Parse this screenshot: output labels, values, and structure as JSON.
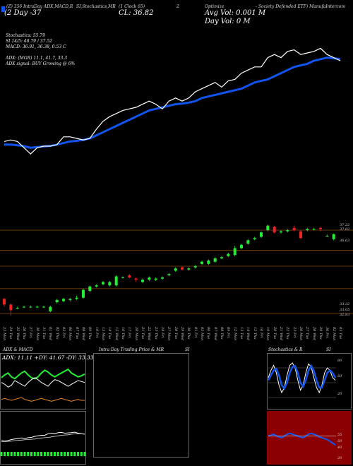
{
  "header": {
    "ticker_line": "(Z) 356 IntraDay ADX,MACD,R",
    "chart_type_line": "SI,Stochastics,MR",
    "clock_line": "(1 Clock 65)",
    "ceiling": "2",
    "title_right": "Optimize",
    "company": "- Society Defended ETF) ManufaIntercom",
    "o_value": "(2 Day -37",
    "cl_value": "CL: 36.82",
    "avg_vol": "Avg Vol: 0.001 M",
    "day_vol": "Day Vol: 0   M"
  },
  "info": {
    "stochastics": "Stochastics: 55.79",
    "si": "SI 14/5: 48.79 / 37.52",
    "macd": "MACD: 36.91, 36.38, 0.53 C",
    "adx": "ADX:                    (MGR) 11.1, 41.7, 33.3",
    "adx_signal": "ADX  signal:                           BUY Growing @ 6%"
  },
  "colors": {
    "price_line": "#ffffff",
    "ema_line": "#1155ee",
    "up_candle": "#22ee33",
    "down_candle": "#ee2222",
    "grid": "#8a4a10"
  },
  "chart_data": [
    {
      "type": "line",
      "x": [
        "23 Mon",
        "24 Tue",
        "25 Wed",
        "26 Thu",
        "27 Fri",
        "30 Mon",
        "31 Tue",
        "01 Wed",
        "02 Thu",
        "03 Fri",
        "06 Mon",
        "07 Tue",
        "08 Wed",
        "09 Thu",
        "10 Fri",
        "13 Mon",
        "14 Tue",
        "15 Wed",
        "16 Thu",
        "17 Fri",
        "20 Mon",
        "21 Tue",
        "22 Wed",
        "23 Thu",
        "24 Fri",
        "27 Mon",
        "28 Tue",
        "29 Wed",
        "30 Thu",
        "01 Fri",
        "05 Mon",
        "06 Tue",
        "07 Wed",
        "08 Thu",
        "09 Fri",
        "12 Mon",
        "13 Tue",
        "14 Wed",
        "15 Thu",
        "16 Fri",
        "19 Mon",
        "20 Tue",
        "21 Wed",
        "22 Thu",
        "23 Fri",
        "26 Mon",
        "27 Tue",
        "28 Wed",
        "29 Thu",
        "30 Fri",
        "02 Mon",
        "03 Tue"
      ],
      "series": [
        {
          "values": [
            33.9,
            33.95,
            33.9,
            33.7,
            33.5,
            33.7,
            33.75,
            33.75,
            33.8,
            34.05,
            34.05,
            34.0,
            33.95,
            34.0,
            34.3,
            34.55,
            34.7,
            34.8,
            34.9,
            34.95,
            35.0,
            35.1,
            35.2,
            35.1,
            34.95,
            35.2,
            35.3,
            35.2,
            35.3,
            35.5,
            35.6,
            35.7,
            35.8,
            35.65,
            35.85,
            35.9,
            36.1,
            36.2,
            36.3,
            36.3,
            36.6,
            36.7,
            36.6,
            36.8,
            36.85,
            36.7,
            36.75,
            36.8,
            36.9,
            36.7,
            36.6,
            36.5
          ]
        },
        {
          "values": [
            33.8,
            33.8,
            33.78,
            33.75,
            33.7,
            33.72,
            33.74,
            33.76,
            33.8,
            33.85,
            33.9,
            33.92,
            33.95,
            34.0,
            34.1,
            34.2,
            34.3,
            34.4,
            34.5,
            34.6,
            34.7,
            34.8,
            34.9,
            34.95,
            35.0,
            35.05,
            35.1,
            35.12,
            35.15,
            35.2,
            35.3,
            35.35,
            35.4,
            35.45,
            35.5,
            35.55,
            35.6,
            35.7,
            35.8,
            35.85,
            35.9,
            36.0,
            36.1,
            36.2,
            36.3,
            36.35,
            36.4,
            36.5,
            36.55,
            36.6,
            36.58,
            36.55
          ]
        }
      ],
      "ylim": [
        33.0,
        38.0
      ]
    },
    {
      "type": "bar",
      "x": [
        "23 Mon",
        "24 Tue",
        "25 Wed",
        "26 Thu",
        "27 Fri",
        "30 Mon",
        "31 Tue",
        "01 Wed",
        "02 Thu",
        "03 Fri",
        "06 Mon",
        "07 Tue",
        "08 Wed",
        "09 Thu",
        "10 Fri",
        "13 Mon",
        "14 Tue",
        "15 Wed",
        "16 Thu",
        "17 Fri",
        "20 Mon",
        "21 Tue",
        "22 Wed",
        "23 Thu",
        "24 Fri",
        "27 Mon",
        "28 Tue",
        "29 Wed",
        "30 Thu",
        "01 Fri",
        "05 Mon",
        "06 Tue",
        "07 Wed",
        "08 Thu",
        "09 Fri",
        "12 Mon",
        "13 Tue",
        "14 Wed",
        "15 Thu",
        "16 Fri",
        "19 Mon",
        "20 Tue",
        "21 Wed",
        "22 Thu",
        "23 Fri",
        "26 Mon",
        "27 Tue",
        "28 Wed",
        "29 Thu",
        "30 Fri",
        "02 Mon",
        "03 Tue"
      ],
      "candles": [
        {
          "o": 33.95,
          "c": 33.7,
          "h": 34.0,
          "l": 33.6
        },
        {
          "o": 33.7,
          "c": 33.45,
          "h": 33.75,
          "l": 33.2
        },
        {
          "o": 33.55,
          "c": 33.55,
          "h": 33.6,
          "l": 33.5
        },
        {
          "o": 33.6,
          "c": 33.6,
          "h": 33.65,
          "l": 33.55
        },
        {
          "o": 33.6,
          "c": 33.6,
          "h": 33.65,
          "l": 33.55
        },
        {
          "o": 33.6,
          "c": 33.6,
          "h": 33.65,
          "l": 33.55
        },
        {
          "o": 33.6,
          "c": 33.6,
          "h": 33.65,
          "l": 33.55
        },
        {
          "o": 33.4,
          "c": 33.6,
          "h": 33.65,
          "l": 33.35
        },
        {
          "o": 33.8,
          "c": 33.9,
          "h": 33.95,
          "l": 33.75
        },
        {
          "o": 33.85,
          "c": 33.95,
          "h": 34.0,
          "l": 33.8
        },
        {
          "o": 33.9,
          "c": 33.95,
          "h": 34.0,
          "l": 33.85
        },
        {
          "o": 33.95,
          "c": 34.0,
          "h": 34.1,
          "l": 33.9
        },
        {
          "o": 34.0,
          "c": 34.35,
          "h": 34.4,
          "l": 33.95
        },
        {
          "o": 34.3,
          "c": 34.5,
          "h": 34.55,
          "l": 34.25
        },
        {
          "o": 34.5,
          "c": 34.55,
          "h": 34.6,
          "l": 34.45
        },
        {
          "o": 34.6,
          "c": 34.7,
          "h": 34.75,
          "l": 34.55
        },
        {
          "o": 34.55,
          "c": 34.7,
          "h": 34.75,
          "l": 34.5
        },
        {
          "o": 34.55,
          "c": 34.95,
          "h": 35.0,
          "l": 34.5
        },
        {
          "o": 34.9,
          "c": 34.9,
          "h": 34.95,
          "l": 34.85
        },
        {
          "o": 35.0,
          "c": 34.9,
          "h": 35.05,
          "l": 34.85
        },
        {
          "o": 34.85,
          "c": 34.8,
          "h": 34.9,
          "l": 34.7
        },
        {
          "o": 34.7,
          "c": 34.8,
          "h": 34.85,
          "l": 34.65
        },
        {
          "o": 34.8,
          "c": 34.9,
          "h": 34.95,
          "l": 34.75
        },
        {
          "o": 34.8,
          "c": 34.85,
          "h": 34.9,
          "l": 34.75
        },
        {
          "o": 34.85,
          "c": 34.9,
          "h": 34.95,
          "l": 34.8
        },
        {
          "o": 35.0,
          "c": 35.05,
          "h": 35.1,
          "l": 34.95
        },
        {
          "o": 35.2,
          "c": 35.3,
          "h": 35.35,
          "l": 35.15
        },
        {
          "o": 35.35,
          "c": 35.25,
          "h": 35.4,
          "l": 35.2
        },
        {
          "o": 35.25,
          "c": 35.3,
          "h": 35.35,
          "l": 35.2
        },
        {
          "o": 35.35,
          "c": 35.4,
          "h": 35.45,
          "l": 35.3
        },
        {
          "o": 35.5,
          "c": 35.6,
          "h": 35.65,
          "l": 35.45
        },
        {
          "o": 35.5,
          "c": 35.65,
          "h": 35.7,
          "l": 35.45
        },
        {
          "o": 35.6,
          "c": 35.75,
          "h": 35.8,
          "l": 35.55
        },
        {
          "o": 35.75,
          "c": 35.8,
          "h": 35.85,
          "l": 35.7
        },
        {
          "o": 35.85,
          "c": 35.95,
          "h": 36.0,
          "l": 35.8
        },
        {
          "o": 35.9,
          "c": 36.2,
          "h": 36.3,
          "l": 35.85
        },
        {
          "o": 36.2,
          "c": 36.35,
          "h": 36.4,
          "l": 36.15
        },
        {
          "o": 36.4,
          "c": 36.55,
          "h": 36.6,
          "l": 36.35
        },
        {
          "o": 36.6,
          "c": 36.65,
          "h": 36.7,
          "l": 36.55
        },
        {
          "o": 36.7,
          "c": 36.9,
          "h": 36.95,
          "l": 36.65
        },
        {
          "o": 37.0,
          "c": 37.2,
          "h": 37.25,
          "l": 36.95
        },
        {
          "o": 37.15,
          "c": 36.9,
          "h": 37.2,
          "l": 36.85
        },
        {
          "o": 36.9,
          "c": 36.95,
          "h": 37.0,
          "l": 36.85
        },
        {
          "o": 36.95,
          "c": 37.0,
          "h": 37.05,
          "l": 36.9
        },
        {
          "o": 37.1,
          "c": 37.0,
          "h": 37.2,
          "l": 36.95
        },
        {
          "o": 36.95,
          "c": 36.65,
          "h": 37.0,
          "l": 36.6
        },
        {
          "o": 37.0,
          "c": 37.05,
          "h": 37.1,
          "l": 36.95
        },
        {
          "o": 37.05,
          "c": 37.05,
          "h": 37.1,
          "l": 37.0
        },
        {
          "o": 37.1,
          "c": 37.05,
          "h": 37.15,
          "l": 36.95
        },
        {
          "o": 36.75,
          "c": 36.75,
          "h": 36.8,
          "l": 36.7
        },
        {
          "o": 36.6,
          "c": 36.82,
          "h": 36.85,
          "l": 36.55
        }
      ],
      "price_labels": [
        "37.22",
        "37.02",
        "36.63",
        "33.32",
        "33.05",
        "32.83"
      ],
      "ylim": [
        32.8,
        37.5
      ]
    },
    {
      "type": "line",
      "title": "ADX  & MACD",
      "readout": "ADX: 11.11 +DY: 41.67 -DY: 33.33",
      "series": [
        {
          "values": [
            35,
            38,
            40,
            36,
            34,
            37,
            40,
            42,
            38,
            35,
            34,
            36,
            40,
            43,
            41,
            38,
            36,
            38,
            40,
            42,
            44,
            40,
            38,
            36,
            37,
            39
          ]
        },
        {
          "values": [
            30,
            28,
            25,
            27,
            32,
            30,
            28,
            26,
            30,
            33,
            35,
            33,
            30,
            28,
            26,
            30,
            33,
            32,
            30,
            28,
            26,
            28,
            30,
            32,
            31,
            30
          ]
        },
        {
          "values": [
            12,
            13,
            12,
            11,
            12,
            13,
            14,
            12,
            11,
            10,
            11,
            12,
            13,
            12,
            11,
            10,
            11,
            12,
            13,
            12,
            11,
            10,
            11,
            12,
            11,
            11
          ]
        }
      ]
    },
    {
      "type": "line",
      "title": "Intra  Day Trading Price  & MR",
      "title2": "SI",
      "series": []
    },
    {
      "type": "line",
      "title": "Stochastics & R",
      "title2": "SI",
      "levels": [
        "80",
        "50",
        "20"
      ],
      "rsi_levels": [
        "55",
        "50",
        "40",
        "20"
      ],
      "series": [
        {
          "values": [
            60,
            75,
            85,
            70,
            45,
            30,
            40,
            65,
            85,
            90,
            80,
            55,
            35,
            45,
            70,
            88,
            82,
            60,
            40,
            30,
            45,
            70,
            80,
            75,
            60,
            55
          ]
        },
        {
          "values": [
            55,
            65,
            75,
            78,
            65,
            45,
            38,
            50,
            70,
            82,
            84,
            70,
            50,
            42,
            55,
            75,
            84,
            74,
            55,
            40,
            40,
            55,
            70,
            75,
            70,
            60
          ]
        },
        {
          "values": [
            50,
            51,
            52,
            50,
            49,
            48,
            50,
            52,
            53,
            52,
            51,
            50,
            49,
            48,
            50,
            52,
            53,
            52,
            51,
            49,
            48,
            47,
            46,
            44,
            42,
            40
          ]
        }
      ]
    }
  ]
}
